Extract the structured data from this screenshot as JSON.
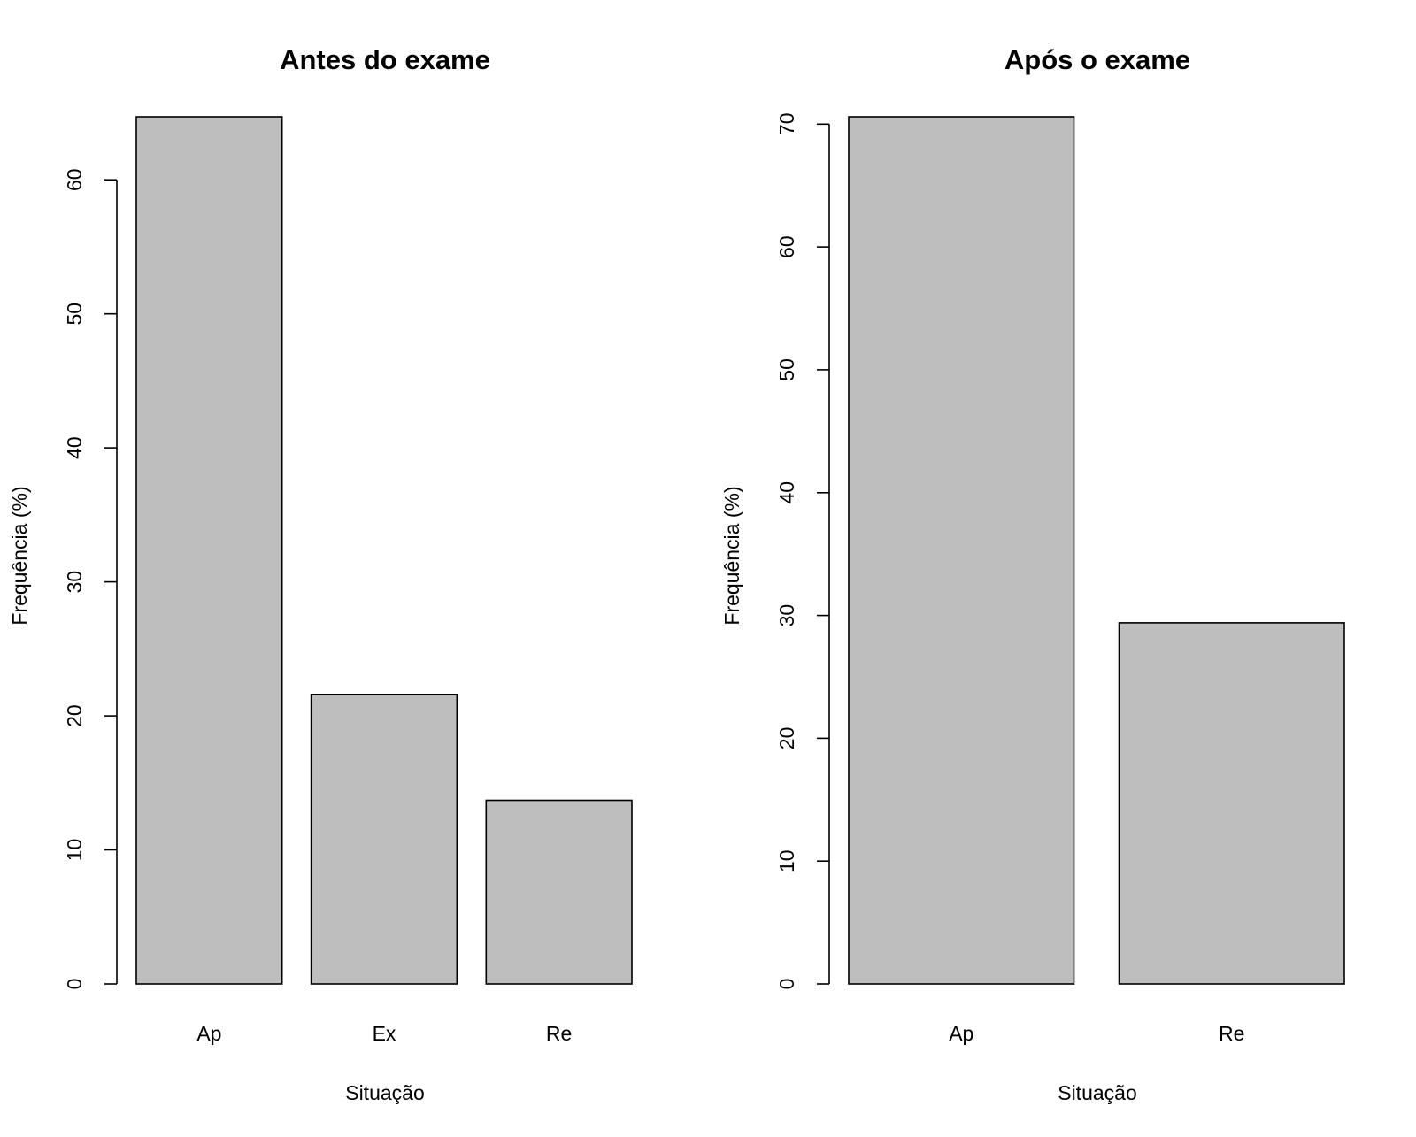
{
  "chart_data": [
    {
      "type": "bar",
      "title": "Antes do exame",
      "xlabel": "Situação",
      "ylabel": "Frequência (%)",
      "categories": [
        "Ap",
        "Ex",
        "Re"
      ],
      "values": [
        64.7,
        21.6,
        13.7
      ],
      "ylim": [
        0,
        64.7
      ],
      "yticks": [
        0,
        10,
        20,
        30,
        40,
        50,
        60
      ],
      "bar_color": "#bebebe",
      "grid": false,
      "legend": "none"
    },
    {
      "type": "bar",
      "title": "Após o exame",
      "xlabel": "Situação",
      "ylabel": "Frequência (%)",
      "categories": [
        "Ap",
        "Re"
      ],
      "values": [
        70.6,
        29.4
      ],
      "ylim": [
        0,
        70.6
      ],
      "yticks": [
        0,
        10,
        20,
        30,
        40,
        50,
        60,
        70
      ],
      "bar_color": "#bebebe",
      "grid": false,
      "legend": "none"
    }
  ]
}
